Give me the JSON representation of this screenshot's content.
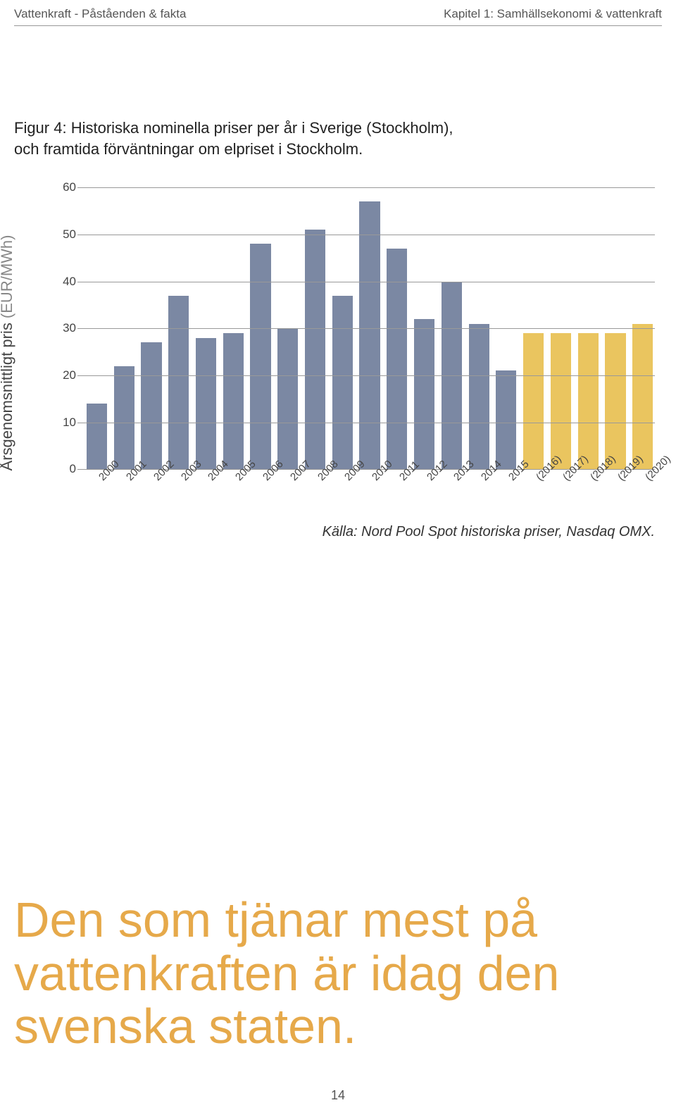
{
  "header": {
    "left": "Vattenkraft - Påståenden & fakta",
    "right": "Kapitel 1: Samhällsekonomi & vattenkraft"
  },
  "figure": {
    "caption_line1": "Figur 4: Historiska nominella priser per år i Sverige (Stockholm),",
    "caption_line2": "och framtida förväntningar om elpriset i Stockholm."
  },
  "chart": {
    "type": "bar",
    "ylabel_main": "Årsgenomsnittligt pris ",
    "ylabel_unit": "(EUR/MWh)",
    "ylim": [
      0,
      60
    ],
    "ytick_step": 10,
    "yticks": [
      0,
      10,
      20,
      30,
      40,
      50,
      60
    ],
    "grid_color": "#999999",
    "background_color": "#ffffff",
    "tick_fontsize": 17,
    "label_fontsize": 22,
    "categories": [
      "2000",
      "2001",
      "2002",
      "2003",
      "2004",
      "2005",
      "2006",
      "2007",
      "2008",
      "2009",
      "2010",
      "2011",
      "2012",
      "2013",
      "2014",
      "2015",
      "(2016)",
      "(2017)",
      "(2018)",
      "(2019)",
      "(2020)"
    ],
    "values": [
      14,
      22,
      27,
      37,
      28,
      29,
      48,
      30,
      51,
      37,
      57,
      47,
      32,
      40,
      31,
      21,
      29,
      29,
      29,
      29,
      31
    ],
    "bar_colors": [
      "#7b88a3",
      "#7b88a3",
      "#7b88a3",
      "#7b88a3",
      "#7b88a3",
      "#7b88a3",
      "#7b88a3",
      "#7b88a3",
      "#7b88a3",
      "#7b88a3",
      "#7b88a3",
      "#7b88a3",
      "#7b88a3",
      "#7b88a3",
      "#7b88a3",
      "#7b88a3",
      "#eac55f",
      "#eac55f",
      "#eac55f",
      "#eac55f",
      "#eac55f"
    ],
    "bar_width": 0.84,
    "source": "Källa: Nord Pool Spot historiska priser, Nasdaq OMX."
  },
  "statement": "Den som tjänar mest på vattenkraften är idag den svenska staten.",
  "page_number": "14"
}
